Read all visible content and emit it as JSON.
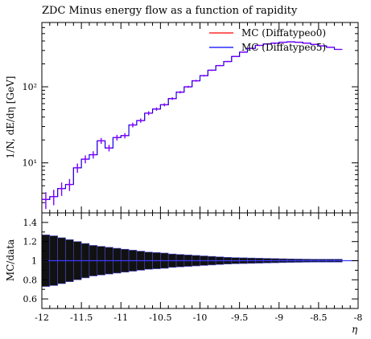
{
  "chart_data": [
    {
      "type": "line",
      "title": "ZDC Minus energy flow as a function of rapidity",
      "xlabel": "η",
      "ylabel": "1/N, dE/dη [GeV]",
      "y_scale": "log",
      "xlim": [
        -12,
        -8
      ],
      "ylim": [
        2.2,
        700
      ],
      "grid": false,
      "legend_position": "top-right",
      "y_tick_labels": [
        "10¹",
        "10²"
      ],
      "y_tick_values": [
        10,
        100
      ],
      "bin_edges": [
        -12.0,
        -11.9,
        -11.8,
        -11.7,
        -11.6,
        -11.5,
        -11.4,
        -11.3,
        -11.2,
        -11.1,
        -11.0,
        -10.9,
        -10.8,
        -10.7,
        -10.6,
        -10.5,
        -10.4,
        -10.3,
        -10.2,
        -10.1,
        -10.0,
        -9.9,
        -9.8,
        -9.7,
        -9.6,
        -9.5,
        -9.4,
        -9.3,
        -9.2,
        -9.1,
        -9.0,
        -8.9,
        -8.8,
        -8.7,
        -8.6,
        -8.5,
        -8.4,
        -8.3,
        -8.2
      ],
      "series": [
        {
          "name": "MC (Diffatypeo0)",
          "color": "#ff0000",
          "values": [
            3.3,
            3.6,
            4.6,
            5.2,
            8.6,
            11.2,
            12.8,
            19.5,
            15.7,
            21.5,
            22.8,
            31.5,
            36,
            45,
            51,
            58,
            70,
            85,
            100,
            120,
            140,
            165,
            190,
            215,
            250,
            285,
            320,
            350,
            365,
            375,
            385,
            390,
            385,
            375,
            360,
            345,
            330,
            310
          ]
        },
        {
          "name": "MC (Diffatypeo5)",
          "color": "#0000ff",
          "values": [
            3.3,
            3.6,
            4.6,
            5.2,
            8.6,
            11.2,
            12.8,
            19.5,
            15.7,
            21.5,
            22.8,
            31.5,
            36,
            45,
            51,
            58,
            70,
            85,
            100,
            120,
            140,
            165,
            190,
            215,
            250,
            285,
            320,
            350,
            365,
            375,
            385,
            390,
            385,
            375,
            360,
            345,
            330,
            310
          ]
        }
      ],
      "data_markers": {
        "color": "#7f00ff",
        "values": [
          3.3,
          3.6,
          4.6,
          5.2,
          8.6,
          11.2,
          12.8,
          19.5,
          15.7,
          21.5,
          22.8,
          31.5,
          36,
          45,
          51,
          58,
          70,
          85,
          100,
          120,
          140,
          165,
          190,
          215,
          250,
          285,
          320,
          350,
          365,
          375,
          385,
          390,
          385,
          375,
          360,
          345,
          330,
          310
        ],
        "rel_errors": [
          0.25,
          0.23,
          0.2,
          0.18,
          0.14,
          0.12,
          0.11,
          0.09,
          0.1,
          0.085,
          0.08,
          0.07,
          0.065,
          0.06,
          0.05,
          0.045,
          0.04,
          0.035,
          0.03,
          0.028,
          0.025,
          0.022,
          0.02,
          0.018,
          0.016,
          0.015,
          0.014,
          0.013,
          0.012,
          0.012,
          0.012,
          0.012,
          0.012,
          0.012,
          0.012,
          0.012,
          0.012,
          0.012
        ]
      }
    },
    {
      "type": "bar",
      "xlabel": "η",
      "ylabel": "MC/data",
      "xlim": [
        -12,
        -8
      ],
      "ylim": [
        0.5,
        1.5
      ],
      "x_tick_labels": [
        "-12",
        "-11.5",
        "-11",
        "-10.5",
        "-10",
        "-9.5",
        "-9",
        "-8.5",
        "-8"
      ],
      "x_tick_values": [
        -12,
        -11.5,
        -11,
        -10.5,
        -10,
        -9.5,
        -9,
        -8.5,
        -8
      ],
      "y_tick_labels": [
        "0.6",
        "0.8",
        "1",
        "1.2",
        "1.4"
      ],
      "y_tick_values": [
        0.6,
        0.8,
        1.0,
        1.2,
        1.4
      ],
      "ratio_line": 1.0,
      "band_half_width": [
        0.27,
        0.26,
        0.24,
        0.22,
        0.2,
        0.18,
        0.16,
        0.15,
        0.14,
        0.13,
        0.12,
        0.11,
        0.1,
        0.09,
        0.085,
        0.08,
        0.07,
        0.065,
        0.06,
        0.055,
        0.05,
        0.045,
        0.04,
        0.035,
        0.032,
        0.03,
        0.028,
        0.026,
        0.024,
        0.022,
        0.02,
        0.018,
        0.017,
        0.016,
        0.015,
        0.015,
        0.015,
        0.015
      ]
    }
  ]
}
